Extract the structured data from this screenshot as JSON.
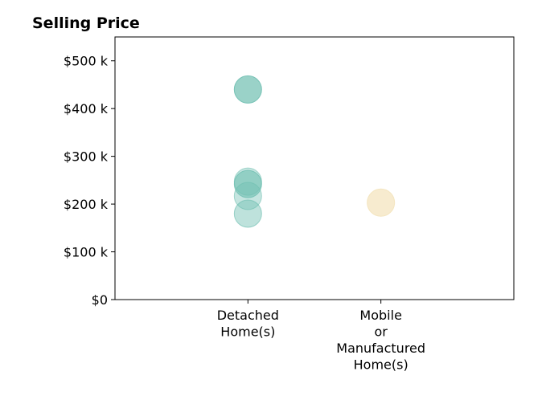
{
  "chart_data": {
    "type": "scatter",
    "title": "Selling Price",
    "xlabel": "",
    "ylabel": "",
    "categories": [
      [
        "Detached",
        "Home(s)"
      ],
      [
        "Mobile",
        "or",
        "Manufactured",
        "Home(s)"
      ]
    ],
    "y_ticks": [
      {
        "value": 0,
        "label": "$0"
      },
      {
        "value": 100000,
        "label": "$100 k"
      },
      {
        "value": 200000,
        "label": "$200 k"
      },
      {
        "value": 300000,
        "label": "$300 k"
      },
      {
        "value": 400000,
        "label": "$400 k"
      },
      {
        "value": 500000,
        "label": "$500 k"
      }
    ],
    "ylim": [
      0,
      550000
    ],
    "x_range": [
      -1,
      2
    ],
    "grid": false,
    "legend": "none",
    "series": [
      {
        "color": "#6fbfb1",
        "points": [
          {
            "category": 0,
            "y": 440000,
            "alpha": 0.7
          },
          {
            "category": 0,
            "y": 247000,
            "alpha": 0.4
          },
          {
            "category": 0,
            "y": 242000,
            "alpha": 0.6
          },
          {
            "category": 0,
            "y": 217000,
            "alpha": 0.4
          },
          {
            "category": 0,
            "y": 180000,
            "alpha": 0.45
          }
        ]
      },
      {
        "color": "#f3e3bb",
        "points": [
          {
            "category": 1,
            "y": 203000,
            "alpha": 0.7
          }
        ]
      }
    ]
  }
}
